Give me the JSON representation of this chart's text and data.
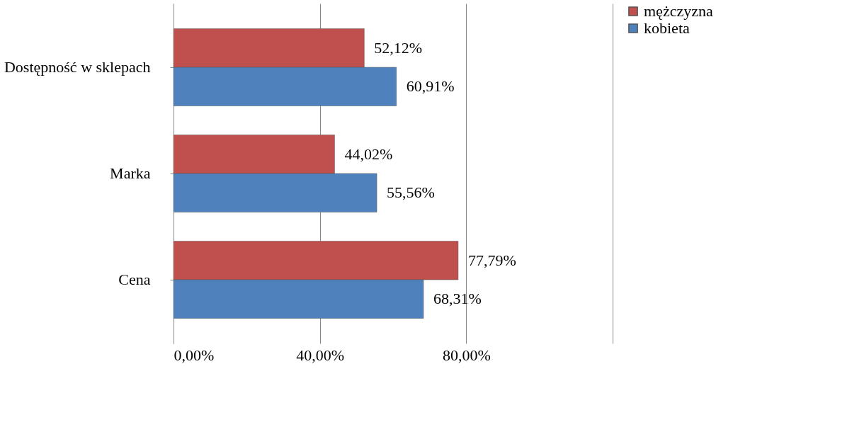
{
  "chart_data": {
    "type": "bar",
    "orientation": "horizontal",
    "categories": [
      "Dostępność w sklepach",
      "Marka",
      "Cena"
    ],
    "series": [
      {
        "name": "mężczyzna",
        "color": "#c0504d",
        "values": [
          52.12,
          44.02,
          77.79
        ],
        "value_labels": [
          "52,12%",
          "44,02%",
          "77,79%"
        ]
      },
      {
        "name": "kobieta",
        "color": "#4f81bd",
        "values": [
          60.91,
          55.56,
          68.31
        ],
        "value_labels": [
          "60,91%",
          "55,56%",
          "68,31%"
        ]
      }
    ],
    "xlim": [
      0,
      120
    ],
    "xticks": [
      {
        "value": 0,
        "label": "0,00%"
      },
      {
        "value": 40,
        "label": "40,00%"
      },
      {
        "value": 80,
        "label": "80,00%"
      },
      {
        "value": 120,
        "label": null
      }
    ],
    "grid": "x",
    "legend": "right"
  }
}
